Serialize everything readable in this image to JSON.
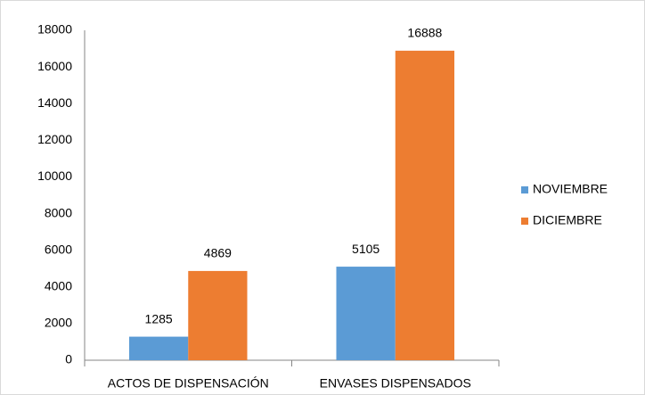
{
  "chart_data": {
    "type": "bar",
    "categories": [
      "ACTOS DE DISPENSACIÓN",
      "ENVASES DISPENSADOS"
    ],
    "series": [
      {
        "name": "NOVIEMBRE",
        "color": "#5b9bd5",
        "values": [
          1285,
          5105
        ]
      },
      {
        "name": "DICIEMBRE",
        "color": "#ed7d31",
        "values": [
          4869,
          16888
        ]
      }
    ],
    "ylim": [
      0,
      18000
    ],
    "yticks": [
      0,
      2000,
      4000,
      6000,
      8000,
      10000,
      12000,
      14000,
      16000,
      18000
    ],
    "grid": false,
    "legend": "right"
  }
}
